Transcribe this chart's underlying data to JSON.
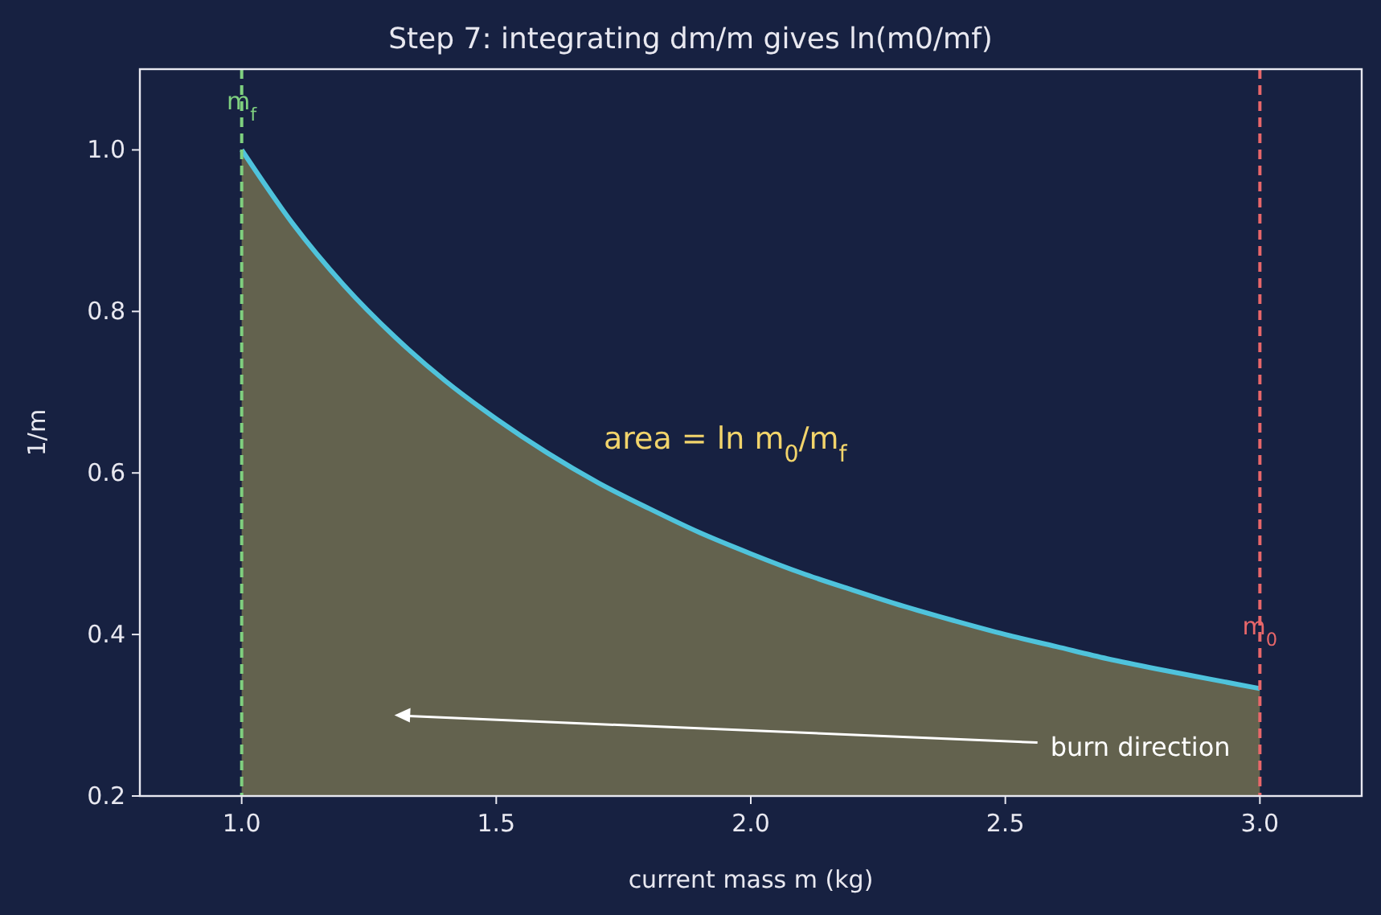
{
  "chart_data": {
    "type": "area",
    "title": "Step 7: integrating dm/m gives ln(m0/mf)",
    "xlabel": "current mass  m (kg)",
    "ylabel": "1/m",
    "x": [
      1,
      1.1,
      1.2,
      1.3,
      1.4,
      1.5,
      1.6,
      1.7,
      1.8,
      1.9,
      2,
      2.1,
      2.2,
      2.3,
      2.4,
      2.5,
      2.6,
      2.7,
      2.8,
      2.9,
      3
    ],
    "series": [
      {
        "color": "#4fc3dc",
        "values": [
          1,
          0.909,
          0.833,
          0.769,
          0.714,
          0.667,
          0.625,
          0.588,
          0.556,
          0.526,
          0.5,
          0.476,
          0.455,
          0.435,
          0.417,
          0.4,
          0.385,
          0.37,
          0.357,
          0.345,
          0.333
        ]
      }
    ],
    "xlim": [
      0.8,
      3.2
    ],
    "ylim": [
      0.2,
      1.1
    ],
    "xticks": [
      {
        "value": 1,
        "label": "1.0"
      },
      {
        "value": 1.5,
        "label": "1.5"
      },
      {
        "value": 2,
        "label": "2.0"
      },
      {
        "value": 2.5,
        "label": "2.5"
      },
      {
        "value": 3,
        "label": "3.0"
      }
    ],
    "yticks": [
      {
        "value": 0.2,
        "label": "0.2"
      },
      {
        "value": 0.4,
        "label": "0.4"
      },
      {
        "value": 0.6,
        "label": "0.6"
      },
      {
        "value": 0.8,
        "label": "0.8"
      },
      {
        "value": 1,
        "label": "1.0"
      }
    ],
    "ref_lines": [
      {
        "axis": "x",
        "value": 1,
        "label": "m$_{f}$",
        "color": "#7fd07f",
        "line_style": "dashed"
      },
      {
        "axis": "x",
        "value": 3,
        "label": "m$_{0}$",
        "color": "#e8676a",
        "line_style": "dashed"
      }
    ],
    "annotations": [
      "area = ln m$_{0}$/m$_{f}$",
      "burn direction"
    ],
    "grid": false,
    "line_style": "solid"
  }
}
